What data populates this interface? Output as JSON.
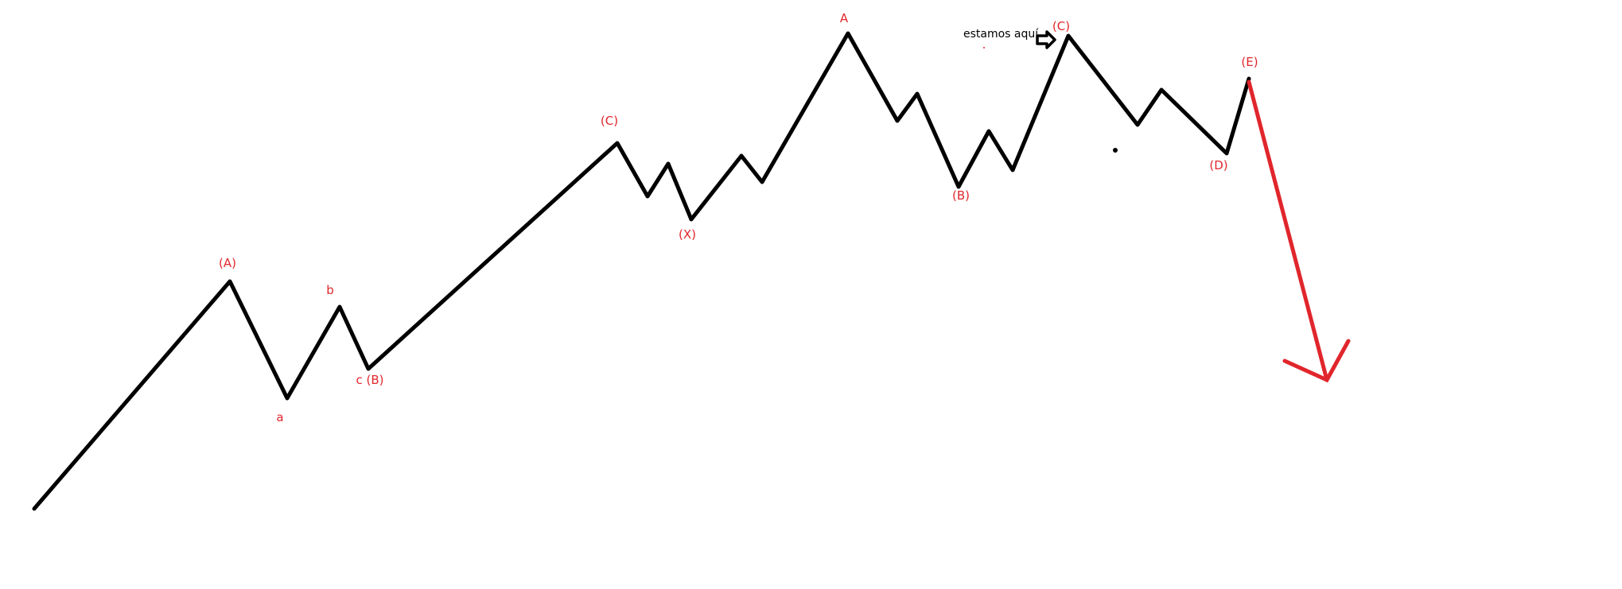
{
  "colors": {
    "wave": "#000000",
    "projection": "#e0262c",
    "labels": "#e0262c",
    "note": "#000000"
  },
  "labels": {
    "A1": "(A)",
    "a": "a",
    "b": "b",
    "cB": "c (B)",
    "C1": "(C)",
    "X": "(X)",
    "A2": "A",
    "B2": "(B)",
    "C2": "(C)",
    "D": "(D)",
    "E": "(E)"
  },
  "note": {
    "text": "estamos aquí",
    "icon": "arrow-right-outline-icon"
  }
}
